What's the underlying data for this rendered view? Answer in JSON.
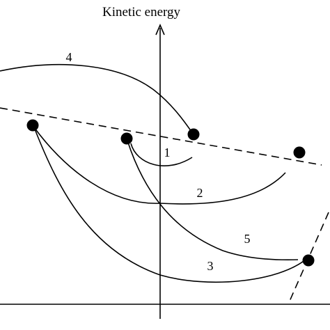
{
  "figure": {
    "y_axis_title": "Kinetic energy",
    "curve_labels": [
      {
        "id": "curve-4",
        "text": "4"
      },
      {
        "id": "curve-1",
        "text": "1"
      },
      {
        "id": "curve-2",
        "text": "2"
      },
      {
        "id": "curve-5",
        "text": "5"
      },
      {
        "id": "curve-3",
        "text": "3"
      }
    ]
  }
}
